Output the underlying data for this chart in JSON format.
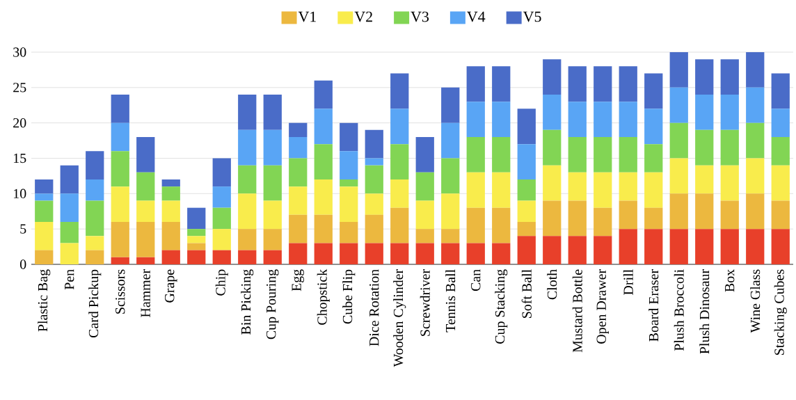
{
  "chart_data": {
    "type": "bar",
    "stacked": true,
    "categories": [
      "Plastic Bag",
      "Pen",
      "Card Pickup",
      "Scissors",
      "Hammer",
      "Grape",
      null,
      "Chip",
      "Bin Picking",
      "Cup Pouring",
      "Egg",
      "Chopstick",
      "Cube Flip",
      "Dice Rotation",
      "Wooden Cylinder",
      "Screwdriver",
      "Tennis Ball",
      "Can",
      "Cup Stacking",
      "Soft Ball",
      "Cloth",
      "Mustard Bottle",
      "Open Drawer",
      "Drill",
      "Board Eraser",
      "Plush Broccoli",
      "Plush Dinosaur",
      "Box",
      "Wine Glass",
      "Stacking Cubes"
    ],
    "series": [
      {
        "color": "#e8402a",
        "values": [
          0,
          0,
          0,
          1,
          1,
          2,
          2,
          2,
          2,
          2,
          3,
          3,
          3,
          3,
          3,
          3,
          3,
          3,
          3,
          4,
          4,
          4,
          4,
          5,
          5,
          5,
          5,
          5,
          5,
          5
        ]
      },
      {
        "name": "V1",
        "color": "#ecb83f",
        "values": [
          2,
          0,
          2,
          5,
          5,
          4,
          1,
          0,
          3,
          3,
          4,
          4,
          3,
          4,
          5,
          2,
          2,
          5,
          5,
          2,
          5,
          5,
          4,
          4,
          3,
          5,
          5,
          4,
          5,
          4
        ]
      },
      {
        "name": "V2",
        "color": "#f9ec4c",
        "values": [
          4,
          3,
          2,
          5,
          3,
          3,
          1,
          3,
          5,
          4,
          4,
          5,
          5,
          3,
          4,
          4,
          5,
          5,
          5,
          3,
          5,
          4,
          5,
          4,
          5,
          5,
          4,
          5,
          5,
          5
        ]
      },
      {
        "name": "V3",
        "color": "#82d554",
        "values": [
          3,
          3,
          5,
          5,
          4,
          2,
          1,
          3,
          4,
          5,
          4,
          5,
          1,
          4,
          5,
          4,
          5,
          5,
          5,
          3,
          5,
          5,
          5,
          5,
          4,
          5,
          5,
          5,
          5,
          4
        ]
      },
      {
        "name": "V4",
        "color": "#59a5f5",
        "values": [
          1,
          4,
          3,
          4,
          0,
          0,
          0,
          3,
          5,
          5,
          3,
          5,
          4,
          1,
          5,
          0,
          5,
          5,
          5,
          5,
          5,
          5,
          5,
          5,
          5,
          5,
          5,
          5,
          5,
          4
        ]
      },
      {
        "name": "V5",
        "color": "#4a6cc8",
        "values": [
          2,
          4,
          4,
          4,
          5,
          1,
          3,
          4,
          5,
          5,
          2,
          4,
          4,
          4,
          5,
          5,
          5,
          5,
          5,
          5,
          5,
          5,
          5,
          5,
          5,
          5,
          5,
          5,
          5,
          5
        ]
      }
    ],
    "ylim": [
      0,
      30
    ],
    "yticks": [
      0,
      5,
      10,
      15,
      20,
      25,
      30
    ],
    "grid": "y",
    "legend": "top"
  }
}
